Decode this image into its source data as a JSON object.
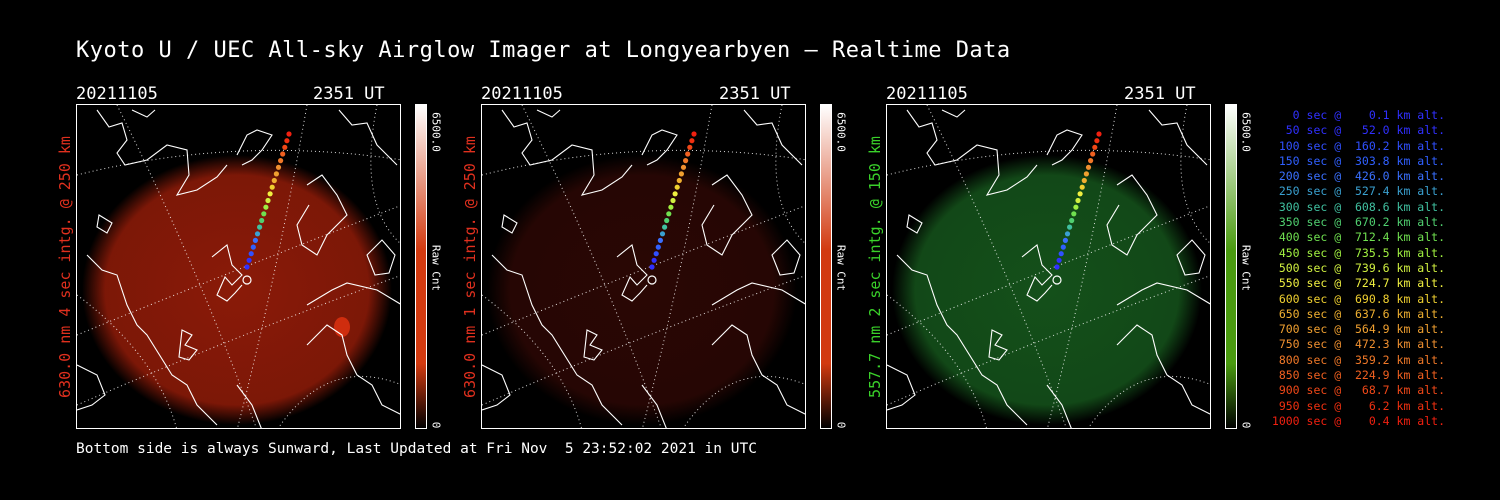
{
  "title": "Kyoto U / UEC All-sky Airglow Imager at Longyearbyen — Realtime Data",
  "panels": [
    {
      "date": "20211105",
      "time": "2351 UT",
      "label": "630.0 nm 4 sec intg. @ 250 km",
      "label_color": "#e0301e",
      "colorbar_max": "6500.0",
      "colorbar_unit": "Raw Cnt",
      "colorbar_min": "0",
      "colorbar_color": "#d23a10",
      "glow_color": "#8a1a08"
    },
    {
      "date": "20211105",
      "time": "2351 UT",
      "label": "630.0 nm 1 sec intg. @ 250 km",
      "label_color": "#e0301e",
      "colorbar_max": "6500.0",
      "colorbar_unit": "Raw Cnt",
      "colorbar_min": "0",
      "colorbar_color": "#d23a10",
      "glow_color": "#2a0704"
    },
    {
      "date": "20211105",
      "time": "2351 UT",
      "label": "557.7 nm 2 sec intg. @ 150 km",
      "label_color": "#3ad12a",
      "colorbar_max": "6500.0",
      "colorbar_unit": "Raw Cnt",
      "colorbar_min": "0",
      "colorbar_color": "#4a9a10",
      "glow_color": "#14501a"
    }
  ],
  "legend": [
    {
      "text": "0 sec @    0.1 km alt.",
      "color": "#3030ff"
    },
    {
      "text": "50 sec @   52.0 km alt.",
      "color": "#3030ff"
    },
    {
      "text": "100 sec @  160.2 km alt.",
      "color": "#3050ff"
    },
    {
      "text": "150 sec @  303.8 km alt.",
      "color": "#3060ff"
    },
    {
      "text": "200 sec @  426.0 km alt.",
      "color": "#3a70ff"
    },
    {
      "text": "250 sec @  527.4 km alt.",
      "color": "#3aa0d0"
    },
    {
      "text": "300 sec @  608.6 km alt.",
      "color": "#40c0a0"
    },
    {
      "text": "350 sec @  670.2 km alt.",
      "color": "#50d070"
    },
    {
      "text": "400 sec @  712.4 km alt.",
      "color": "#70e050"
    },
    {
      "text": "450 sec @  735.5 km alt.",
      "color": "#a0f040"
    },
    {
      "text": "500 sec @  739.6 km alt.",
      "color": "#d0f040"
    },
    {
      "text": "550 sec @  724.7 km alt.",
      "color": "#f0f040"
    },
    {
      "text": "600 sec @  690.8 km alt.",
      "color": "#f0d030"
    },
    {
      "text": "650 sec @  637.6 km alt.",
      "color": "#f0b030"
    },
    {
      "text": "700 sec @  564.9 km alt.",
      "color": "#f0a030"
    },
    {
      "text": "750 sec @  472.3 km alt.",
      "color": "#f09030"
    },
    {
      "text": "800 sec @  359.2 km alt.",
      "color": "#f07828"
    },
    {
      "text": "850 sec @  224.9 km alt.",
      "color": "#f06020"
    },
    {
      "text": "900 sec @   68.7 km alt.",
      "color": "#f04818"
    },
    {
      "text": "950 sec @    6.2 km alt.",
      "color": "#f03010"
    },
    {
      "text": "1000 sec @    0.4 km alt.",
      "color": "#f02010"
    }
  ],
  "footer": "Bottom side is always Sunward, Last Updated at Fri Nov  5 23:52:02 2021 in UTC"
}
